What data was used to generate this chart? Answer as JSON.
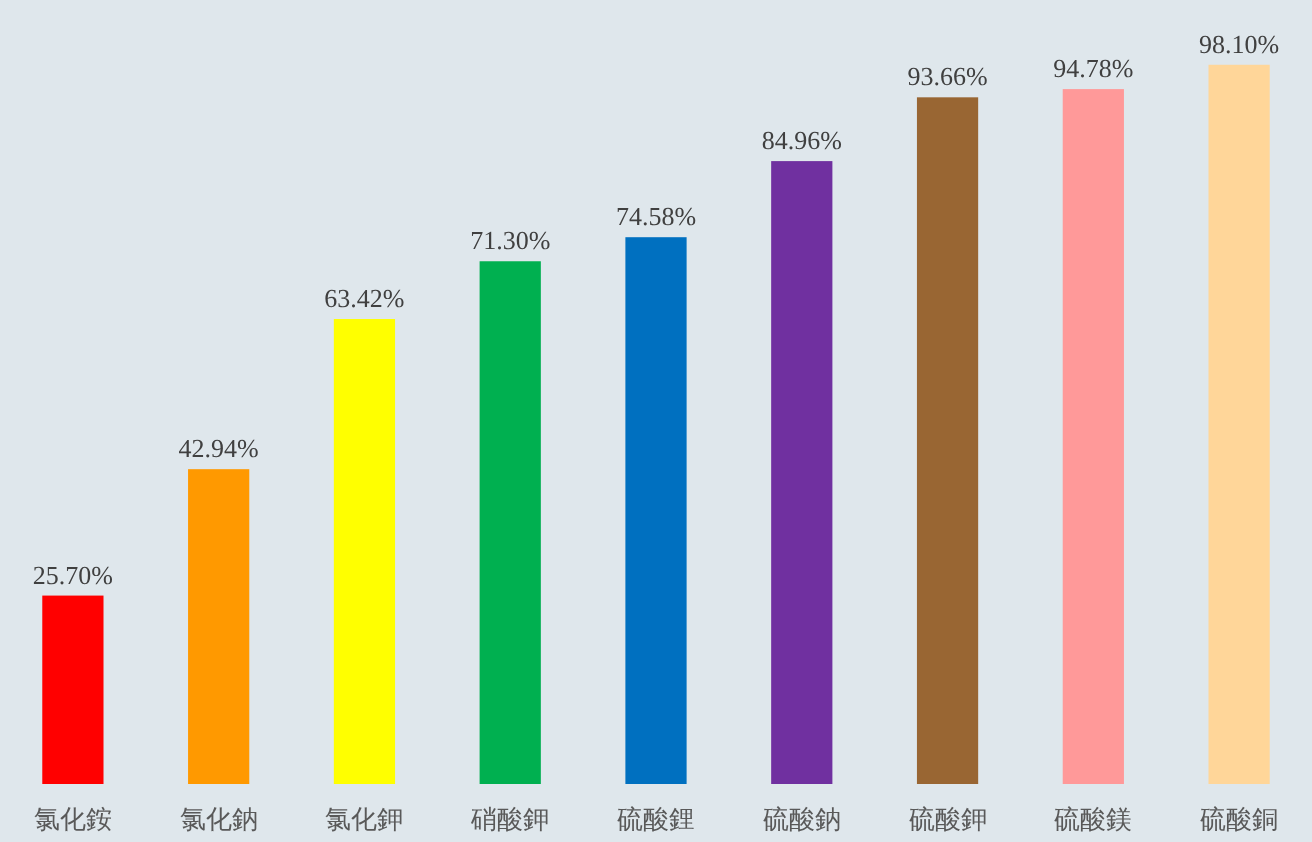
{
  "chart_data": {
    "type": "bar",
    "categories": [
      "氯化銨",
      "氯化鈉",
      "氯化鉀",
      "硝酸鉀",
      "硫酸鋰",
      "硫酸鈉",
      "硫酸鉀",
      "硫酸鎂",
      "硫酸銅"
    ],
    "values": [
      25.7,
      42.94,
      63.42,
      71.3,
      74.58,
      84.96,
      93.66,
      94.78,
      98.1
    ],
    "value_labels": [
      "25.70%",
      "42.94%",
      "63.42%",
      "71.30%",
      "74.58%",
      "84.96%",
      "93.66%",
      "94.78%",
      "98.10%"
    ],
    "colors": [
      "#ff0000",
      "#ff9900",
      "#ffff00",
      "#00b050",
      "#0070c0",
      "#7030a0",
      "#996633",
      "#ff9999",
      "#ffd699"
    ]
  }
}
